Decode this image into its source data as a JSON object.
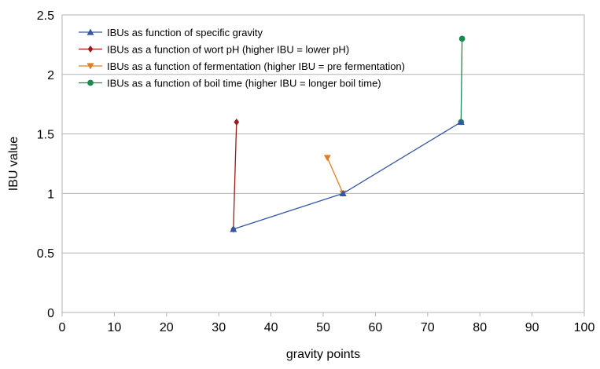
{
  "chart_data": {
    "type": "scatter",
    "title": "",
    "xlabel": "gravity points",
    "ylabel": "IBU value",
    "xlim": [
      0,
      100
    ],
    "ylim": [
      0,
      2.5
    ],
    "xticks": [
      "0",
      "10",
      "20",
      "30",
      "40",
      "50",
      "60",
      "70",
      "80",
      "90",
      "100"
    ],
    "yticks": [
      "0",
      "0.5",
      "1",
      "1.5",
      "2",
      "2.5"
    ],
    "grid": "horizontal",
    "legend_position": "top-left",
    "series": [
      {
        "name": "IBUs as function of specific gravity",
        "color": "#3456a4",
        "marker": "triangle-up",
        "points": [
          [
            32.8,
            0.7
          ],
          [
            53.8,
            1.0
          ],
          [
            76.4,
            1.6
          ]
        ]
      },
      {
        "name": "IBUs as a function of wort pH (higher IBU = lower pH)",
        "color": "#9c1a1a",
        "marker": "diamond",
        "points": [
          [
            32.8,
            0.7
          ],
          [
            33.4,
            1.6
          ]
        ]
      },
      {
        "name": "IBUs as a function of fermentation (higher IBU = pre fermentation)",
        "color": "#e07e22",
        "marker": "triangle-down",
        "points": [
          [
            53.8,
            1.0
          ],
          [
            50.8,
            1.3
          ]
        ]
      },
      {
        "name": "IBUs as a function of boil time (higher IBU = longer boil time)",
        "color": "#1b8a50",
        "marker": "circle",
        "points": [
          [
            76.4,
            1.6
          ],
          [
            76.6,
            2.3
          ]
        ]
      }
    ]
  }
}
